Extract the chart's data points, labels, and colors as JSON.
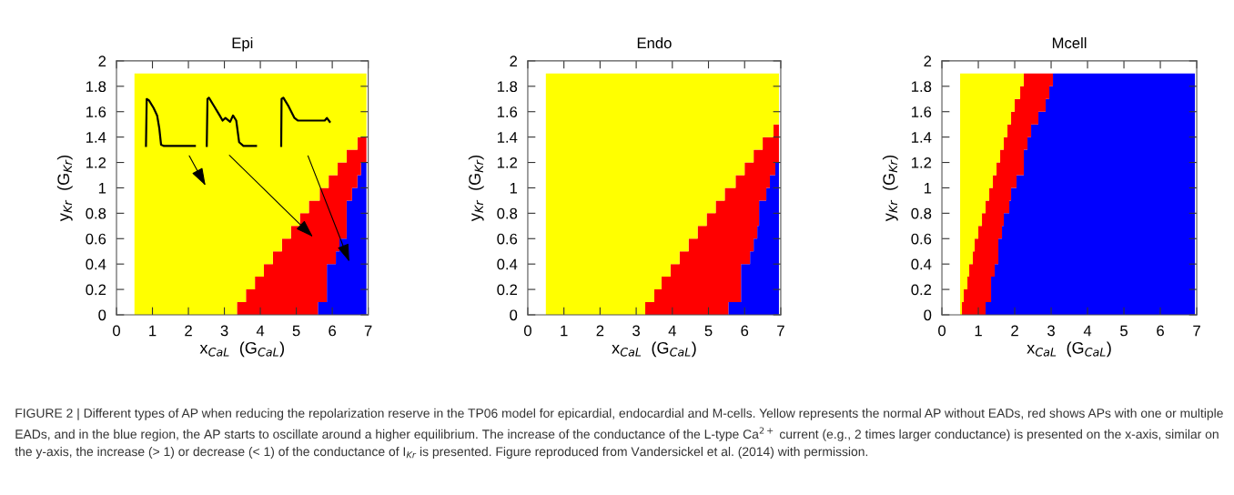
{
  "chart_data": [
    {
      "type": "area",
      "stacked": true,
      "title": "Epi",
      "xlabel": "x$_{CaL}$  (G$_{CaL}$)",
      "ylabel": "y$_{Kr}$  (G$_{Kr}$)",
      "x": [
        0.5,
        3.35,
        3.35,
        3.6,
        3.6,
        3.85,
        3.85,
        4.1,
        4.1,
        4.35,
        4.35,
        4.6,
        4.6,
        4.85,
        4.85,
        5.1,
        5.1,
        5.35,
        5.35,
        5.6,
        5.6,
        5.65,
        5.65,
        5.85,
        5.85,
        5.9,
        5.9,
        6.1,
        6.1,
        6.15,
        6.15,
        6.2,
        6.2,
        6.4,
        6.4,
        6.55,
        6.55,
        6.7,
        6.7,
        6.8,
        6.8,
        6.95
      ],
      "series": [
        {
          "color": "#0000ff",
          "values": [
            0,
            0,
            0,
            0,
            0,
            0,
            0,
            0,
            0,
            0,
            0,
            0,
            0,
            0,
            0,
            0,
            0,
            0,
            0,
            0,
            0.1,
            0.1,
            0.1,
            0.1,
            0.4,
            0.4,
            0.4,
            0.4,
            0.5,
            0.5,
            0.5,
            0.5,
            0.6,
            0.6,
            0.9,
            0.9,
            1.0,
            1.0,
            1.1,
            1.1,
            1.2,
            1.2
          ]
        },
        {
          "color": "#ff0000",
          "values": [
            0,
            0,
            0.1,
            0.1,
            0.2,
            0.2,
            0.3,
            0.3,
            0.4,
            0.4,
            0.5,
            0.5,
            0.6,
            0.6,
            0.7,
            0.7,
            0.8,
            0.8,
            0.9,
            0.9,
            0.8,
            0.8,
            0.9,
            0.9,
            0.6,
            0.6,
            0.7,
            0.7,
            0.6,
            0.6,
            0.7,
            0.7,
            0.6,
            0.6,
            0.4,
            0.4,
            0.3,
            0.3,
            0.3,
            0.3,
            0.2,
            0.2
          ]
        },
        {
          "color": "#ffff00",
          "values": [
            1.9,
            1.9,
            1.8,
            1.8,
            1.7,
            1.7,
            1.6,
            1.6,
            1.5,
            1.5,
            1.4,
            1.4,
            1.3,
            1.3,
            1.2,
            1.2,
            1.1,
            1.1,
            1.0,
            1.0,
            1.0,
            1.0,
            0.9,
            0.9,
            0.9,
            0.9,
            0.8,
            0.8,
            0.8,
            0.8,
            0.7,
            0.7,
            0.7,
            0.7,
            0.6,
            0.6,
            0.6,
            0.6,
            0.5,
            0.5,
            0.5,
            0.5
          ]
        }
      ],
      "xlim": [
        0,
        7
      ],
      "xticks": [
        0,
        1,
        2,
        3,
        4,
        5,
        6,
        7
      ],
      "ylim": [
        0,
        2
      ],
      "yticks": [
        0,
        0.2,
        0.4,
        0.6,
        0.8,
        1,
        1.2,
        1.4,
        1.6,
        1.8,
        2
      ],
      "grid": false
    },
    {
      "type": "area",
      "stacked": true,
      "title": "Endo",
      "xlabel": "x$_{CaL}$  (G$_{CaL}$)",
      "ylabel": "y$_{Kr}$  (G$_{Kr}$)",
      "x": [
        0.5,
        3.25,
        3.25,
        3.5,
        3.5,
        3.7,
        3.7,
        3.95,
        3.95,
        4.2,
        4.2,
        4.45,
        4.45,
        4.7,
        4.7,
        4.95,
        4.95,
        5.2,
        5.2,
        5.45,
        5.45,
        5.55,
        5.55,
        5.75,
        5.75,
        5.9,
        5.9,
        6.0,
        6.0,
        6.15,
        6.15,
        6.25,
        6.25,
        6.35,
        6.35,
        6.4,
        6.4,
        6.5,
        6.5,
        6.6,
        6.6,
        6.7,
        6.7,
        6.8,
        6.8,
        6.85,
        6.85,
        6.95
      ],
      "series": [
        {
          "color": "#0000ff",
          "values": [
            0,
            0,
            0,
            0,
            0,
            0,
            0,
            0,
            0,
            0,
            0,
            0,
            0,
            0,
            0,
            0,
            0,
            0,
            0,
            0,
            0,
            0,
            0.1,
            0.1,
            0.1,
            0.1,
            0.4,
            0.4,
            0.4,
            0.4,
            0.5,
            0.5,
            0.6,
            0.6,
            0.7,
            0.7,
            0.9,
            0.9,
            0.9,
            0.9,
            1.0,
            1.0,
            1.1,
            1.1,
            1.1,
            1.1,
            1.2,
            1.2
          ]
        },
        {
          "color": "#ff0000",
          "values": [
            0,
            0,
            0.1,
            0.1,
            0.2,
            0.2,
            0.3,
            0.3,
            0.4,
            0.4,
            0.5,
            0.5,
            0.6,
            0.6,
            0.7,
            0.7,
            0.8,
            0.8,
            0.9,
            0.9,
            1.0,
            1.0,
            0.9,
            0.9,
            1.0,
            1.0,
            0.7,
            0.7,
            0.8,
            0.8,
            0.7,
            0.7,
            0.7,
            0.7,
            0.6,
            0.6,
            0.4,
            0.4,
            0.5,
            0.5,
            0.4,
            0.4,
            0.3,
            0.3,
            0.4,
            0.4,
            0.3,
            0.3
          ]
        },
        {
          "color": "#ffff00",
          "values": [
            1.9,
            1.9,
            1.8,
            1.8,
            1.7,
            1.7,
            1.6,
            1.6,
            1.5,
            1.5,
            1.4,
            1.4,
            1.3,
            1.3,
            1.2,
            1.2,
            1.1,
            1.1,
            1.0,
            1.0,
            0.9,
            0.9,
            0.9,
            0.9,
            0.8,
            0.8,
            0.8,
            0.8,
            0.7,
            0.7,
            0.7,
            0.7,
            0.6,
            0.6,
            0.6,
            0.6,
            0.6,
            0.6,
            0.5,
            0.5,
            0.5,
            0.5,
            0.5,
            0.5,
            0.4,
            0.4,
            0.4,
            0.4
          ]
        }
      ],
      "xlim": [
        0,
        7
      ],
      "xticks": [
        0,
        1,
        2,
        3,
        4,
        5,
        6,
        7
      ],
      "ylim": [
        0,
        2
      ],
      "yticks": [
        0,
        0.2,
        0.4,
        0.6,
        0.8,
        1,
        1.2,
        1.4,
        1.6,
        1.8,
        2
      ],
      "grid": false
    },
    {
      "type": "area",
      "stacked": true,
      "title": "Mcell",
      "xlabel": "x$_{CaL}$  (G$_{CaL}$)",
      "ylabel": "y$_{Kr}$  (G$_{Kr}$)",
      "x": [
        0.5,
        0.55,
        0.55,
        0.6,
        0.6,
        0.7,
        0.7,
        0.75,
        0.75,
        0.85,
        0.85,
        0.9,
        0.9,
        1.0,
        1.0,
        1.1,
        1.1,
        1.2,
        1.2,
        1.3,
        1.3,
        1.35,
        1.35,
        1.4,
        1.4,
        1.45,
        1.45,
        1.5,
        1.5,
        1.55,
        1.55,
        1.6,
        1.6,
        1.65,
        1.65,
        1.7,
        1.7,
        1.8,
        1.8,
        1.85,
        1.85,
        1.9,
        1.9,
        2.0,
        2.0,
        2.05,
        2.05,
        2.15,
        2.15,
        2.25,
        2.25,
        2.35,
        2.35,
        2.45,
        2.45,
        2.65,
        2.65,
        2.85,
        2.85,
        2.95,
        2.95,
        3.05,
        3.05,
        6.95
      ],
      "series": [
        {
          "color": "#0000ff",
          "values": [
            0,
            0,
            0,
            0,
            0,
            0,
            0,
            0,
            0,
            0,
            0,
            0,
            0,
            0,
            0,
            0,
            0,
            0,
            0.1,
            0.1,
            0.1,
            0.1,
            0.3,
            0.3,
            0.3,
            0.3,
            0.4,
            0.4,
            0.4,
            0.4,
            0.6,
            0.6,
            0.6,
            0.6,
            0.7,
            0.7,
            0.8,
            0.8,
            0.8,
            0.8,
            0.9,
            0.9,
            1.0,
            1.0,
            1.0,
            1.0,
            1.1,
            1.1,
            1.1,
            1.1,
            1.3,
            1.3,
            1.4,
            1.4,
            1.5,
            1.5,
            1.6,
            1.6,
            1.7,
            1.7,
            1.8,
            1.8,
            1.9,
            1.9
          ]
        },
        {
          "color": "#ff0000",
          "values": [
            0,
            0,
            0.1,
            0.1,
            0.2,
            0.2,
            0.3,
            0.3,
            0.4,
            0.4,
            0.5,
            0.5,
            0.6,
            0.6,
            0.7,
            0.7,
            0.8,
            0.8,
            0.8,
            0.8,
            0.9,
            0.9,
            0.7,
            0.7,
            0.8,
            0.8,
            0.7,
            0.7,
            0.8,
            0.8,
            0.6,
            0.6,
            0.7,
            0.7,
            0.6,
            0.6,
            0.6,
            0.6,
            0.7,
            0.7,
            0.6,
            0.6,
            0.6,
            0.6,
            0.7,
            0.7,
            0.6,
            0.6,
            0.7,
            0.7,
            0.6,
            0.6,
            0.5,
            0.5,
            0.4,
            0.4,
            0.3,
            0.3,
            0.2,
            0.2,
            0.1,
            0.1,
            0,
            null
          ]
        },
        {
          "color": "#ffff00",
          "values": [
            1.9,
            1.9,
            1.8,
            1.8,
            1.7,
            1.7,
            1.6,
            1.6,
            1.5,
            1.5,
            1.4,
            1.4,
            1.3,
            1.3,
            1.2,
            1.2,
            1.1,
            1.1,
            1.0,
            1.0,
            0.9,
            0.9,
            0.9,
            0.9,
            0.8,
            0.8,
            0.8,
            0.8,
            0.7,
            0.7,
            0.7,
            0.7,
            0.6,
            0.6,
            0.6,
            0.6,
            0.5,
            0.5,
            0.4,
            0.4,
            0.4,
            0.4,
            0.3,
            0.3,
            0.2,
            0.2,
            0.2,
            0.2,
            0.1,
            0.1,
            0,
            null,
            null,
            null,
            null,
            null,
            null,
            null,
            null,
            null,
            null,
            null,
            null,
            null
          ]
        }
      ],
      "xlim": [
        0,
        7
      ],
      "xticks": [
        0,
        1,
        2,
        3,
        4,
        5,
        6,
        7
      ],
      "ylim": [
        0,
        2
      ],
      "yticks": [
        0,
        0.2,
        0.4,
        0.6,
        0.8,
        1,
        1.2,
        1.4,
        1.6,
        1.8,
        2
      ],
      "grid": false,
      "annotations": [
        "FIGURE 2 | Different types of AP when reducing the repolarization reserve in the TP06 model for epicardial, endocardial and M-cells. Yellow represents the normal AP without EADs, red shows APs with one or multiple EADs, and in the blue region, the AP starts to oscillate around a higher equilibrium. The increase of the conductance of the L-type Ca$^{2+}$ current (e.g., 2 times larger conductance) is presented on the x-axis, similar on the y-axis, the increase (> 1) or decrease (< 1) of the conductance of I$_{Kr}$ is presented. Figure reproduced from Vandersickel et al. (2014) with permission."
      ]
    }
  ]
}
